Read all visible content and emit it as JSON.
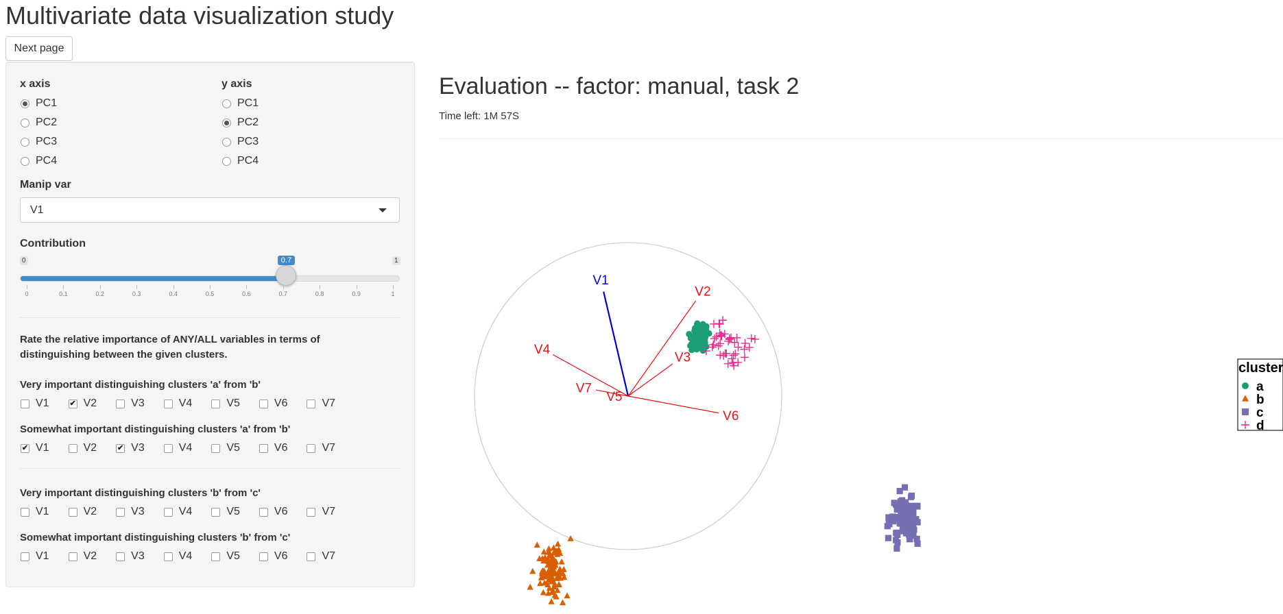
{
  "app": {
    "title": "Multivariate data visualization study",
    "next_label": "Next page"
  },
  "sidebar": {
    "x_axis": {
      "label": "x axis",
      "options": [
        "PC1",
        "PC2",
        "PC3",
        "PC4"
      ],
      "selected": "PC1"
    },
    "y_axis": {
      "label": "y axis",
      "options": [
        "PC1",
        "PC2",
        "PC3",
        "PC4"
      ],
      "selected": "PC2"
    },
    "manip_var": {
      "label": "Manip var",
      "value": "V1"
    },
    "contribution": {
      "label": "Contribution",
      "min": "0",
      "max": "1",
      "value": 0.7,
      "value_label": "0.7",
      "ticks": [
        "0",
        "0.1",
        "0.2",
        "0.3",
        "0.4",
        "0.5",
        "0.6",
        "0.7",
        "0.8",
        "0.9",
        "1"
      ]
    },
    "rate_prompt_line1": "Rate the relative importance of ANY/ALL variables in terms of",
    "rate_prompt_line2": "distinguishing between the given clusters.",
    "groups": [
      {
        "label": "Very important distinguishing clusters 'a' from 'b'",
        "checked": [
          "V2"
        ]
      },
      {
        "label": "Somewhat important distinguishing clusters 'a' from 'b'",
        "checked": [
          "V1",
          "V3"
        ]
      },
      {
        "label": "Very important distinguishing clusters 'b' from 'c'",
        "checked": []
      },
      {
        "label": "Somewhat important distinguishing clusters 'b' from 'c'",
        "checked": []
      }
    ],
    "vars": [
      "V1",
      "V2",
      "V3",
      "V4",
      "V5",
      "V6",
      "V7"
    ]
  },
  "main": {
    "title": "Evaluation -- factor: manual, task 2",
    "time_left": "Time left: 1M 57S"
  },
  "chart_data": {
    "type": "scatter",
    "title": "",
    "legend": {
      "title": "cluster",
      "position": "right",
      "entries": [
        {
          "name": "a",
          "shape": "circle",
          "color": "#1b9e77"
        },
        {
          "name": "b",
          "shape": "triangle",
          "color": "#d95f02"
        },
        {
          "name": "c",
          "shape": "square",
          "color": "#7570b3"
        },
        {
          "name": "d",
          "shape": "plus",
          "color": "#e7298a"
        }
      ]
    },
    "axes_circle": {
      "manip_color": "#0000dd",
      "other_color": "#ee1111",
      "vectors": [
        {
          "name": "V1",
          "x": -0.16,
          "y": 0.68,
          "manip": true
        },
        {
          "name": "V2",
          "x": 0.44,
          "y": 0.62
        },
        {
          "name": "V3",
          "x": 0.29,
          "y": 0.21
        },
        {
          "name": "V4",
          "x": -0.49,
          "y": 0.27
        },
        {
          "name": "V5",
          "x": -0.01,
          "y": 0.0
        },
        {
          "name": "V6",
          "x": 0.59,
          "y": -0.11
        },
        {
          "name": "V7",
          "x": -0.21,
          "y": 0.04
        }
      ]
    },
    "clusters": [
      {
        "name": "a",
        "cx": 0.47,
        "cy": 0.37,
        "sx": 0.04,
        "sy": 0.06,
        "n": 100
      },
      {
        "name": "d",
        "cx": 0.66,
        "cy": 0.32,
        "sx": 0.12,
        "sy": 0.11,
        "n": 40
      },
      {
        "name": "b",
        "cx": -0.49,
        "cy": -1.14,
        "sx": 0.07,
        "sy": 0.12,
        "n": 100
      },
      {
        "name": "c",
        "cx": 1.8,
        "cy": -0.8,
        "sx": 0.07,
        "sy": 0.12,
        "n": 100
      }
    ]
  }
}
